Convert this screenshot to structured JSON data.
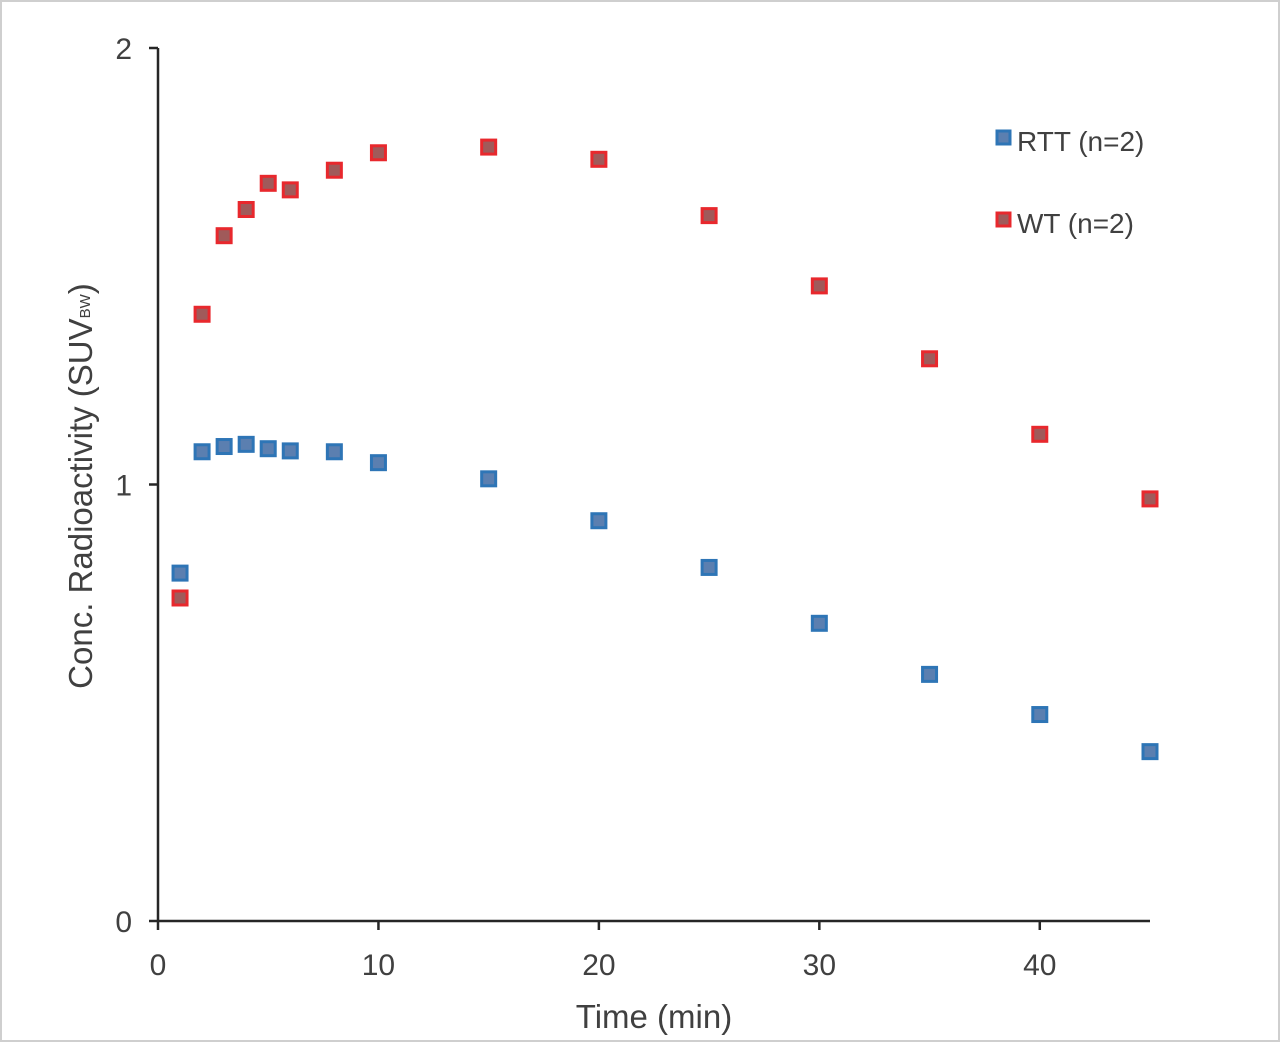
{
  "chart_data": {
    "type": "scatter",
    "xlabel": "Time (min)",
    "ylabel": "Conc. Radioactivity (SUV",
    "ylabel_sub": "BW",
    "ylabel_close": ")",
    "xlim": [
      0,
      45
    ],
    "ylim": [
      0,
      2
    ],
    "xticks": [
      0,
      10,
      20,
      30,
      40
    ],
    "yticks": [
      0,
      1,
      2
    ],
    "grid": false,
    "legend_position": "top-right",
    "series": [
      {
        "name": "RTT (n=2)",
        "color": "#2e75b6",
        "border": "#2e75b6",
        "fill": "#5b7fb0",
        "x": [
          1,
          2,
          3,
          4,
          5,
          6,
          8,
          10,
          15,
          20,
          25,
          30,
          35,
          40,
          45
        ],
        "y": [
          0.797,
          1.075,
          1.087,
          1.092,
          1.082,
          1.077,
          1.075,
          1.05,
          1.013,
          0.917,
          0.81,
          0.682,
          0.565,
          0.473,
          0.388
        ]
      },
      {
        "name": "WT (n=2)",
        "color": "#e8282d",
        "border": "#e8282d",
        "fill": "#a05a5a",
        "x": [
          1,
          2,
          3,
          4,
          5,
          6,
          8,
          10,
          15,
          20,
          25,
          30,
          35,
          40,
          45
        ],
        "y": [
          0.74,
          1.39,
          1.57,
          1.63,
          1.69,
          1.675,
          1.72,
          1.76,
          1.773,
          1.745,
          1.616,
          1.455,
          1.288,
          1.115,
          0.967
        ]
      }
    ]
  }
}
